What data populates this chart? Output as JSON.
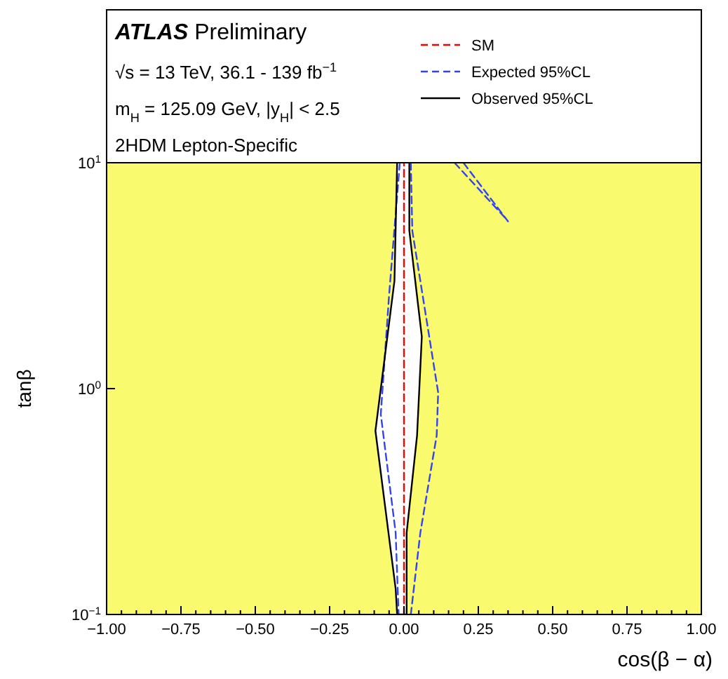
{
  "chart_data": {
    "type": "line",
    "title": "ATLAS Preliminary",
    "xlabel": "cos(β − α)",
    "ylabel": "tanβ",
    "annotations": [
      "√s = 13 TeV, 36.1 - 139 fb$^{−1}$",
      "m$_{H}$ = 125.09 GeV, |y$_{H}$| < 2.5",
      "2HDM Lepton-Specific"
    ],
    "xlim": [
      -1,
      1
    ],
    "ylim": [
      0.1,
      10
    ],
    "log": "y",
    "xticks": [
      {
        "value": -1,
        "label": "−1.00"
      },
      {
        "value": -0.75,
        "label": "−0.75"
      },
      {
        "value": -0.5,
        "label": "−0.50"
      },
      {
        "value": -0.25,
        "label": "−0.25"
      },
      {
        "value": 0,
        "label": "0.00"
      },
      {
        "value": 0.25,
        "label": "0.25"
      },
      {
        "value": 0.5,
        "label": "0.50"
      },
      {
        "value": 0.75,
        "label": "0.75"
      },
      {
        "value": 1,
        "label": "1.00"
      },
      {
        "value": -0.95,
        "label": null
      },
      {
        "value": -0.9,
        "label": null
      },
      {
        "value": -0.85,
        "label": null
      },
      {
        "value": -0.8,
        "label": null
      },
      {
        "value": -0.7,
        "label": null
      },
      {
        "value": -0.65,
        "label": null
      },
      {
        "value": -0.6,
        "label": null
      },
      {
        "value": -0.55,
        "label": null
      },
      {
        "value": -0.45,
        "label": null
      },
      {
        "value": -0.4,
        "label": null
      },
      {
        "value": -0.35,
        "label": null
      },
      {
        "value": -0.3,
        "label": null
      },
      {
        "value": -0.2,
        "label": null
      },
      {
        "value": -0.15,
        "label": null
      },
      {
        "value": -0.1,
        "label": null
      },
      {
        "value": -0.05,
        "label": null
      },
      {
        "value": 0.05,
        "label": null
      },
      {
        "value": 0.1,
        "label": null
      },
      {
        "value": 0.15,
        "label": null
      },
      {
        "value": 0.2,
        "label": null
      },
      {
        "value": 0.3,
        "label": null
      },
      {
        "value": 0.35,
        "label": null
      },
      {
        "value": 0.4,
        "label": null
      },
      {
        "value": 0.45,
        "label": null
      },
      {
        "value": 0.55,
        "label": null
      },
      {
        "value": 0.6,
        "label": null
      },
      {
        "value": 0.65,
        "label": null
      },
      {
        "value": 0.7,
        "label": null
      },
      {
        "value": 0.8,
        "label": null
      },
      {
        "value": 0.85,
        "label": null
      },
      {
        "value": 0.9,
        "label": null
      },
      {
        "value": 0.95,
        "label": null
      }
    ],
    "yticks": [
      {
        "value": 0.1,
        "label": "10$^{−1}$"
      },
      {
        "value": 1,
        "label": "10$^{0}$"
      },
      {
        "value": 10,
        "label": "10$^{1}$"
      }
    ],
    "legend": "top right",
    "bands": [
      {
        "axis": "x",
        "from": -1,
        "to": 1,
        "color": "#fafa6e"
      }
    ],
    "series": [
      {
        "name": "SM",
        "color": "#ff0000",
        "line_style": "dashed",
        "x": [
          0,
          0
        ],
        "values": [
          0.1,
          10
        ]
      },
      {
        "name": "Expected 95%CL",
        "color": "#3344ee",
        "line_style": "dashed",
        "x": [
          -0.014,
          -0.05,
          -0.078,
          -0.028,
          -0.018
        ],
        "values": [
          10,
          2.6,
          0.77,
          0.23,
          0.1
        ]
      },
      {
        "name": "Observed 95%CL",
        "color": "#000000",
        "line_style": "solid",
        "x": [
          -0.023,
          -0.032,
          -0.096,
          -0.028,
          -0.023,
          0.009,
          0.009,
          0.044,
          0.06,
          0.018,
          0.018
        ],
        "values": [
          10,
          3.0,
          0.65,
          0.13,
          0.1,
          0.1,
          0.23,
          0.62,
          1.7,
          5.0,
          10
        ]
      },
      {
        "color": "#3344ee",
        "line_style": "dashed",
        "x": [
          0.023,
          0.028,
          0.115,
          0.11,
          0.055,
          0.023
        ],
        "values": [
          10,
          5.0,
          0.96,
          0.62,
          0.23,
          0.1
        ]
      },
      {
        "color": "#3344ee",
        "line_style": "dashed",
        "x": [
          0.2,
          0.35,
          0.335,
          0.17
        ],
        "values": [
          10,
          5.5,
          5.8,
          10
        ]
      }
    ]
  }
}
